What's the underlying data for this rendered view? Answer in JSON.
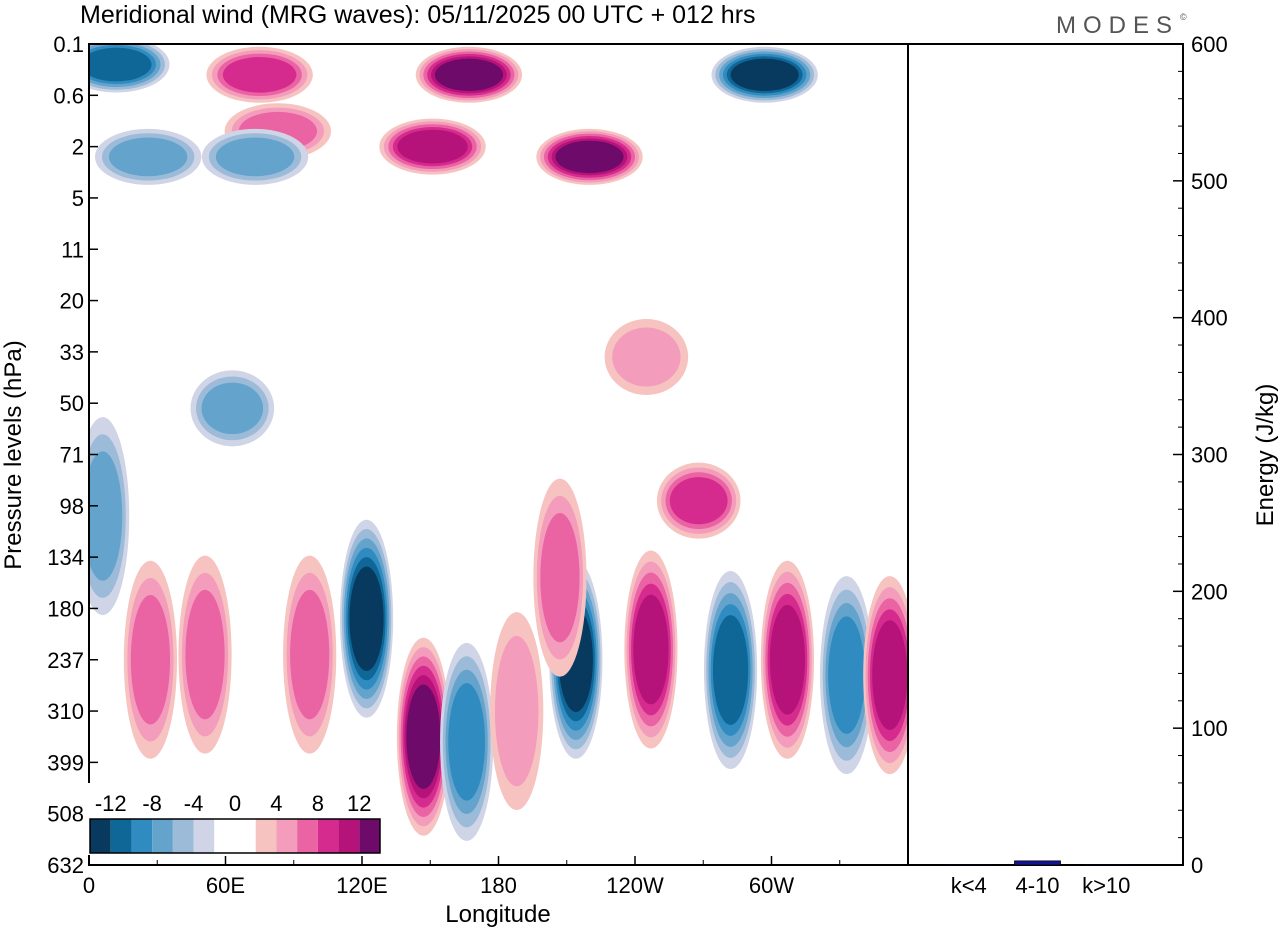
{
  "title": "Meridional wind (MRG waves):  05/11/2025  00 UTC  + 012 hrs",
  "logo": "MODES",
  "logo_mark": "©",
  "colors": {
    "neg": [
      "#073a5e",
      "#0f6797",
      "#2f8bc0",
      "#64a3cc",
      "#9bbbd8",
      "#cfd5e6"
    ],
    "pos": [
      "#f7c3c1",
      "#f49cbc",
      "#ea63a2",
      "#d62b8e",
      "#b6137a",
      "#6e0a69"
    ],
    "bar": "#14149a"
  },
  "chart_data": [
    {
      "type": "heatmap",
      "title": "Meridional wind (MRG waves):  05/11/2025  00 UTC  + 012 hrs",
      "xlabel": "Longitude",
      "ylabel": "Pressure levels (hPa)",
      "x_ticks": [
        "0",
        "60E",
        "120E",
        "180",
        "120W",
        "60W"
      ],
      "x_tick_values": [
        0,
        60,
        120,
        180,
        240,
        300
      ],
      "xlim": [
        0,
        360
      ],
      "y_levels": [
        "0.1",
        "0.6",
        "2",
        "5",
        "11",
        "20",
        "33",
        "50",
        "71",
        "98",
        "134",
        "180",
        "237",
        "310",
        "399",
        "508",
        "632"
      ],
      "colorbar": {
        "labels": [
          "-12",
          "-8",
          "-4",
          "0",
          "4",
          "8",
          "12"
        ],
        "levels": [
          -12,
          -8,
          -4,
          0,
          4,
          8,
          12
        ]
      },
      "features": [
        {
          "lon": 122,
          "level_index": 11.2,
          "value": -14
        },
        {
          "lon": 147,
          "level_index": 13.5,
          "value": 13
        },
        {
          "lon": 214,
          "level_index": 12.0,
          "value": -11
        },
        {
          "lon": 247,
          "level_index": 11.8,
          "value": 10
        },
        {
          "lon": 282,
          "level_index": 12.2,
          "value": -10
        },
        {
          "lon": 307,
          "level_index": 12.0,
          "value": 9
        },
        {
          "lon": 333,
          "level_index": 12.3,
          "value": -8
        },
        {
          "lon": 352,
          "level_index": 12.3,
          "value": 9
        },
        {
          "lon": 167,
          "level_index": 0.6,
          "value": 12
        },
        {
          "lon": 220,
          "level_index": 2.2,
          "value": 11
        },
        {
          "lon": 12,
          "level_index": 0.4,
          "value": -10
        },
        {
          "lon": 297,
          "level_index": 0.6,
          "value": -11
        },
        {
          "lon": 75,
          "level_index": 0.6,
          "value": 8
        },
        {
          "lon": 83,
          "level_index": 1.7,
          "value": 5
        },
        {
          "lon": 73,
          "level_index": 2.2,
          "value": -6
        },
        {
          "lon": 26,
          "level_index": 2.2,
          "value": -6
        },
        {
          "lon": 63,
          "level_index": 7.1,
          "value": -6
        },
        {
          "lon": 151,
          "level_index": 2.0,
          "value": 9
        },
        {
          "lon": 245,
          "level_index": 6.1,
          "value": 3
        },
        {
          "lon": 207,
          "level_index": 10.4,
          "value": 5
        },
        {
          "lon": 268,
          "level_index": 8.9,
          "value": 7
        },
        {
          "lon": 97,
          "level_index": 11.9,
          "value": 5
        },
        {
          "lon": 166,
          "level_index": 13.6,
          "value": -8
        },
        {
          "lon": 188,
          "level_index": 13.0,
          "value": 4
        },
        {
          "lon": 27,
          "level_index": 12.0,
          "value": 5
        },
        {
          "lon": 51,
          "level_index": 11.9,
          "value": 5
        },
        {
          "lon": 6,
          "level_index": 9.2,
          "value": -5
        }
      ]
    },
    {
      "type": "bar",
      "categories": [
        "k<4",
        "4-10",
        "k>10"
      ],
      "values": [
        0.4,
        3.0,
        0.4
      ],
      "ylabel": "Energy (J/kg)",
      "ylim": [
        0,
        600
      ],
      "y_ticks": [
        "0",
        "100",
        "200",
        "300",
        "400",
        "500",
        "600"
      ],
      "y_tick_values": [
        0,
        100,
        200,
        300,
        400,
        500,
        600
      ]
    }
  ]
}
